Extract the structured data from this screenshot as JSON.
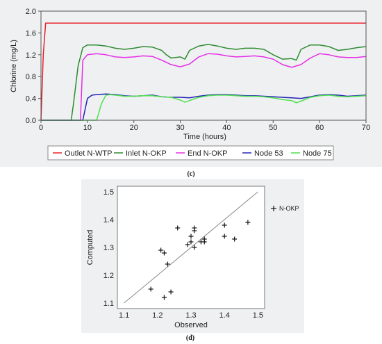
{
  "chart_data": [
    {
      "type": "line",
      "caption": "(c)",
      "xlabel": "Time (hours)",
      "ylabel": "Chlorine (mg/L)",
      "xlim": [
        0,
        70
      ],
      "ylim": [
        0,
        2.0
      ],
      "x_ticks": [
        "0",
        "10",
        "20",
        "30",
        "40",
        "50",
        "60",
        "70"
      ],
      "y_ticks": [
        "0.0",
        "0.4",
        "0.8",
        "1.2",
        "1.6",
        "2.0"
      ],
      "grid": false,
      "legend_position": "bottom",
      "series": [
        {
          "name": "Outlet N-WTP",
          "color": "#e8202a",
          "x": [
            0,
            0.5,
            1,
            70
          ],
          "y": [
            0,
            1.2,
            1.78,
            1.78
          ]
        },
        {
          "name": "Inlet N-OKP",
          "color": "#2e8b30",
          "x": [
            0,
            6.5,
            7,
            8,
            9,
            10,
            12,
            14,
            16,
            18,
            20,
            22,
            24,
            26,
            27,
            28,
            30,
            31,
            32,
            34,
            36,
            38,
            40,
            42,
            44,
            46,
            48,
            50,
            52,
            54,
            55,
            56,
            58,
            60,
            62,
            64,
            66,
            68,
            70
          ],
          "y": [
            0,
            0,
            0.3,
            1.0,
            1.33,
            1.38,
            1.38,
            1.36,
            1.32,
            1.3,
            1.32,
            1.35,
            1.34,
            1.28,
            1.2,
            1.14,
            1.16,
            1.12,
            1.28,
            1.36,
            1.39,
            1.36,
            1.32,
            1.3,
            1.32,
            1.32,
            1.3,
            1.2,
            1.12,
            1.13,
            1.1,
            1.3,
            1.38,
            1.38,
            1.35,
            1.28,
            1.3,
            1.33,
            1.35
          ]
        },
        {
          "name": "End N-OKP",
          "color": "#e62ee6",
          "x": [
            0,
            8.5,
            9,
            10,
            12,
            14,
            16,
            18,
            20,
            22,
            24,
            26,
            28,
            30,
            32,
            34,
            36,
            38,
            40,
            42,
            44,
            46,
            48,
            50,
            52,
            54,
            56,
            58,
            60,
            62,
            64,
            66,
            68,
            70
          ],
          "y": [
            0,
            0,
            1.1,
            1.2,
            1.22,
            1.2,
            1.16,
            1.15,
            1.16,
            1.18,
            1.17,
            1.1,
            1.02,
            0.98,
            1.03,
            1.16,
            1.22,
            1.21,
            1.18,
            1.16,
            1.17,
            1.18,
            1.16,
            1.12,
            1.02,
            0.97,
            1.02,
            1.14,
            1.22,
            1.2,
            1.16,
            1.15,
            1.15,
            1.17
          ]
        },
        {
          "name": "Node 53",
          "color": "#2323b4",
          "x": [
            0,
            9,
            10,
            11,
            12,
            14,
            16,
            18,
            20,
            22,
            24,
            26,
            28,
            30,
            32,
            34,
            36,
            38,
            40,
            42,
            44,
            46,
            48,
            50,
            52,
            54,
            56,
            58,
            60,
            62,
            64,
            66,
            68,
            70
          ],
          "y": [
            0,
            0,
            0.4,
            0.46,
            0.47,
            0.48,
            0.47,
            0.45,
            0.44,
            0.45,
            0.46,
            0.43,
            0.42,
            0.42,
            0.41,
            0.44,
            0.46,
            0.47,
            0.47,
            0.46,
            0.45,
            0.45,
            0.44,
            0.43,
            0.42,
            0.41,
            0.4,
            0.43,
            0.46,
            0.47,
            0.46,
            0.44,
            0.45,
            0.46
          ]
        },
        {
          "name": "Node 75",
          "color": "#4ee04e",
          "x": [
            0,
            12,
            13,
            14,
            15,
            16,
            18,
            20,
            22,
            24,
            26,
            28,
            30,
            31,
            32,
            34,
            36,
            38,
            40,
            42,
            44,
            46,
            48,
            50,
            52,
            54,
            55,
            56,
            58,
            60,
            62,
            64,
            66,
            68,
            70
          ],
          "y": [
            0,
            0,
            0.3,
            0.46,
            0.47,
            0.46,
            0.44,
            0.44,
            0.45,
            0.45,
            0.43,
            0.42,
            0.37,
            0.33,
            0.36,
            0.42,
            0.45,
            0.46,
            0.46,
            0.45,
            0.44,
            0.44,
            0.43,
            0.41,
            0.38,
            0.36,
            0.32,
            0.35,
            0.42,
            0.45,
            0.46,
            0.44,
            0.43,
            0.44,
            0.45
          ]
        }
      ]
    },
    {
      "type": "scatter",
      "caption": "(d)",
      "xlabel": "Observed",
      "ylabel": "Computed",
      "xlim": [
        1.08,
        1.52
      ],
      "ylim": [
        1.08,
        1.52
      ],
      "x_ticks": [
        "1.1",
        "1.2",
        "1.3",
        "1.4",
        "1.5"
      ],
      "y_ticks": [
        "1.1",
        "1.2",
        "1.3",
        "1.4",
        "1.5"
      ],
      "grid": false,
      "legend_position": "right",
      "reference_line": [
        [
          1.1,
          1.1
        ],
        [
          1.5,
          1.5
        ]
      ],
      "series": [
        {
          "name": "N-OKP",
          "marker": "+",
          "points": [
            [
              1.18,
              1.15
            ],
            [
              1.21,
              1.29
            ],
            [
              1.22,
              1.28
            ],
            [
              1.22,
              1.12
            ],
            [
              1.23,
              1.24
            ],
            [
              1.24,
              1.14
            ],
            [
              1.26,
              1.37
            ],
            [
              1.29,
              1.31
            ],
            [
              1.3,
              1.34
            ],
            [
              1.3,
              1.32
            ],
            [
              1.31,
              1.37
            ],
            [
              1.31,
              1.36
            ],
            [
              1.31,
              1.3
            ],
            [
              1.33,
              1.32
            ],
            [
              1.34,
              1.33
            ],
            [
              1.34,
              1.32
            ],
            [
              1.4,
              1.38
            ],
            [
              1.4,
              1.34
            ],
            [
              1.43,
              1.33
            ],
            [
              1.47,
              1.39
            ]
          ]
        }
      ]
    }
  ]
}
